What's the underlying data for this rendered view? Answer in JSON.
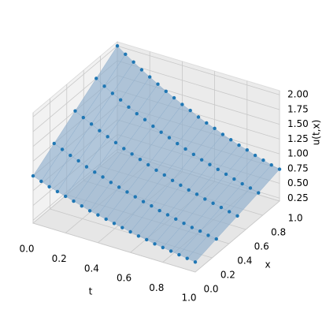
{
  "chart_data": {
    "type": "surface3d",
    "xlabel": "t",
    "ylabel": "x",
    "zlabel": "u(t,x)",
    "t": [
      0,
      0.05,
      0.1,
      0.15,
      0.2,
      0.25,
      0.3,
      0.35,
      0.4,
      0.45,
      0.5,
      0.55,
      0.6,
      0.65,
      0.7,
      0.75,
      0.8,
      0.85,
      0.9,
      0.95,
      1
    ],
    "series": [
      {
        "x": 0,
        "values": [
          1.0,
          0.95,
          0.9,
          0.86,
          0.82,
          0.78,
          0.74,
          0.7,
          0.67,
          0.64,
          0.61,
          0.58,
          0.55,
          0.52,
          0.5,
          0.47,
          0.45,
          0.43,
          0.41,
          0.39,
          0.37
        ]
      },
      {
        "x": 0.25,
        "values": [
          1.25,
          1.19,
          1.13,
          1.08,
          1.02,
          0.97,
          0.93,
          0.88,
          0.84,
          0.8,
          0.76,
          0.72,
          0.69,
          0.65,
          0.62,
          0.59,
          0.56,
          0.53,
          0.51,
          0.48,
          0.46
        ]
      },
      {
        "x": 0.5,
        "values": [
          1.5,
          1.43,
          1.36,
          1.29,
          1.23,
          1.17,
          1.11,
          1.06,
          1.01,
          0.96,
          0.91,
          0.87,
          0.82,
          0.78,
          0.74,
          0.71,
          0.67,
          0.64,
          0.61,
          0.58,
          0.55
        ]
      },
      {
        "x": 0.75,
        "values": [
          1.75,
          1.66,
          1.58,
          1.51,
          1.43,
          1.36,
          1.3,
          1.23,
          1.17,
          1.12,
          1.06,
          1.01,
          0.96,
          0.91,
          0.87,
          0.83,
          0.79,
          0.75,
          0.71,
          0.68,
          0.64
        ]
      },
      {
        "x": 1,
        "values": [
          2.0,
          1.9,
          1.81,
          1.72,
          1.64,
          1.56,
          1.48,
          1.41,
          1.34,
          1.28,
          1.21,
          1.15,
          1.1,
          1.04,
          0.99,
          0.94,
          0.9,
          0.85,
          0.81,
          0.77,
          0.74
        ]
      }
    ],
    "point_color": "#1f77b4",
    "surface_color": "#8eadcc",
    "xlim": [
      0,
      1
    ],
    "xticks": [
      {
        "value": 0,
        "label": "0.0"
      },
      0.2,
      0.4,
      0.6,
      0.8,
      {
        "value": 1,
        "label": "1.0"
      }
    ],
    "ylim": [
      0,
      1
    ],
    "yticks": [
      {
        "value": 0,
        "label": "0.0"
      },
      0.2,
      0.4,
      0.6,
      0.8,
      {
        "value": 1,
        "label": "1.0"
      }
    ],
    "zlim": [
      0.2,
      2.07
    ],
    "zticks": [
      0.25,
      {
        "value": 0.5,
        "label": "0.50"
      },
      0.75,
      {
        "value": 1,
        "label": "1.00"
      },
      1.25,
      {
        "value": 1.5,
        "label": "1.50"
      },
      1.75,
      {
        "value": 2,
        "label": "2.00"
      }
    ],
    "grid": true
  }
}
